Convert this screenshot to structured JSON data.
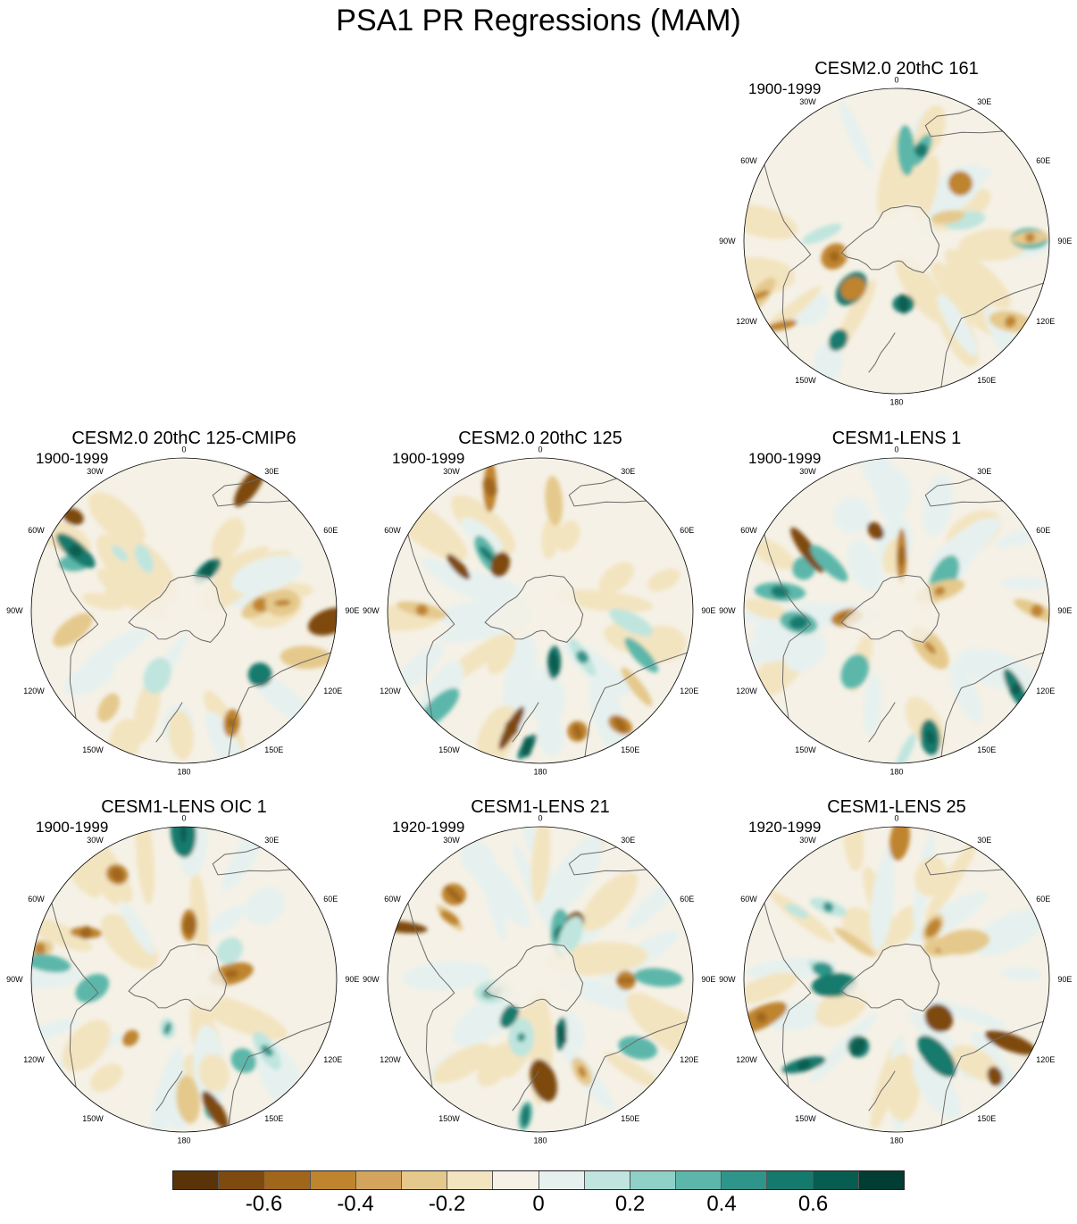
{
  "title": "PSA1 PR Regressions (MAM)",
  "lon_labels": [
    "0",
    "30E",
    "60E",
    "90E",
    "120E",
    "150E",
    "180",
    "150W",
    "120W",
    "90W",
    "60W",
    "30W"
  ],
  "panels": [
    {
      "id": "p1",
      "title": "CESM2.0 20thC 161",
      "years": "1900-1999"
    },
    {
      "id": "p2",
      "title": "CESM2.0 20thC 125-CMIP6",
      "years": "1900-1999"
    },
    {
      "id": "p3",
      "title": "CESM2.0 20thC 125",
      "years": "1900-1999"
    },
    {
      "id": "p4",
      "title": "CESM1-LENS 1",
      "years": "1900-1999"
    },
    {
      "id": "p5",
      "title": "CESM1-LENS OIC 1",
      "years": "1900-1999"
    },
    {
      "id": "p6",
      "title": "CESM1-LENS 21",
      "years": "1920-1999"
    },
    {
      "id": "p7",
      "title": "CESM1-LENS 25",
      "years": "1920-1999"
    }
  ],
  "colorbar": {
    "colors": [
      "#5a3408",
      "#7e4a10",
      "#a0661c",
      "#bf842e",
      "#d3a55c",
      "#e5c98c",
      "#f3e4c0",
      "#f5f1e6",
      "#e6f1ef",
      "#bfe5de",
      "#8fd1c6",
      "#5cb7aa",
      "#2f958a",
      "#147a6d",
      "#075d50",
      "#023d33"
    ],
    "tick_labels": [
      "-0.6",
      "-0.4",
      "-0.2",
      "0",
      "0.2",
      "0.4",
      "0.6"
    ]
  }
}
